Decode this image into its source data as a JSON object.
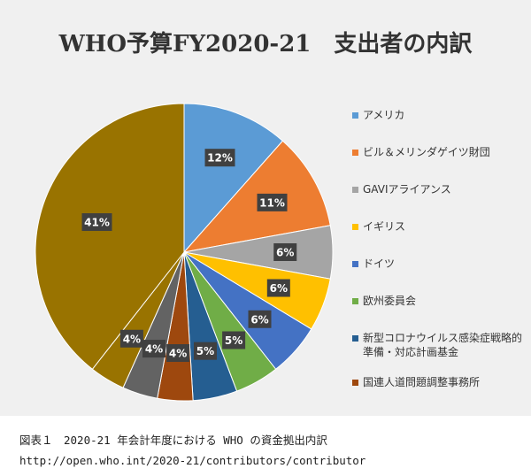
{
  "chart_data": {
    "type": "pie",
    "title": "WHO予算FY2020-21　支出者の内訳",
    "categories": [
      "アメリカ",
      "ビル＆メリンダゲイツ財団",
      "GAVIアライアンス",
      "イギリス",
      "ドイツ",
      "欧州委員会",
      "新型コロナウイルス感染症戦略的準備・対応計画基金",
      "国連人道問題調整事務所",
      "",
      "",
      ""
    ],
    "values": [
      12,
      11,
      6,
      6,
      6,
      5,
      5,
      4,
      4,
      4,
      41
    ],
    "labels": [
      "12%",
      "11%",
      "6%",
      "6%",
      "6%",
      "5%",
      "5%",
      "4%",
      "4%",
      "4%",
      "41%"
    ],
    "colors": [
      "#5b9bd5",
      "#ed7d31",
      "#a5a5a5",
      "#ffc000",
      "#4472c4",
      "#70ad47",
      "#255e91",
      "#9e480e",
      "#636363",
      "#997300",
      "#997300"
    ],
    "legend": [
      {
        "label": "アメリカ",
        "color": "#5b9bd5"
      },
      {
        "label": "ビル＆メリンダゲイツ財団",
        "color": "#ed7d31"
      },
      {
        "label": "GAVIアライアンス",
        "color": "#a5a5a5"
      },
      {
        "label": "イギリス",
        "color": "#ffc000"
      },
      {
        "label": "ドイツ",
        "color": "#4472c4"
      },
      {
        "label": "欧州委員会",
        "color": "#70ad47"
      },
      {
        "label": "新型コロナウイルス感染症戦略的準備・対応計画基金",
        "color": "#255e91"
      },
      {
        "label": "国連人道問題調整事務所",
        "color": "#9e480e"
      }
    ],
    "legend_position": "right"
  },
  "caption": {
    "figure": "図表１　2020-21 年会計年度における WHO の資金拠出内訳",
    "source": "http://open.who.int/2020-21/contributors/contributor"
  }
}
